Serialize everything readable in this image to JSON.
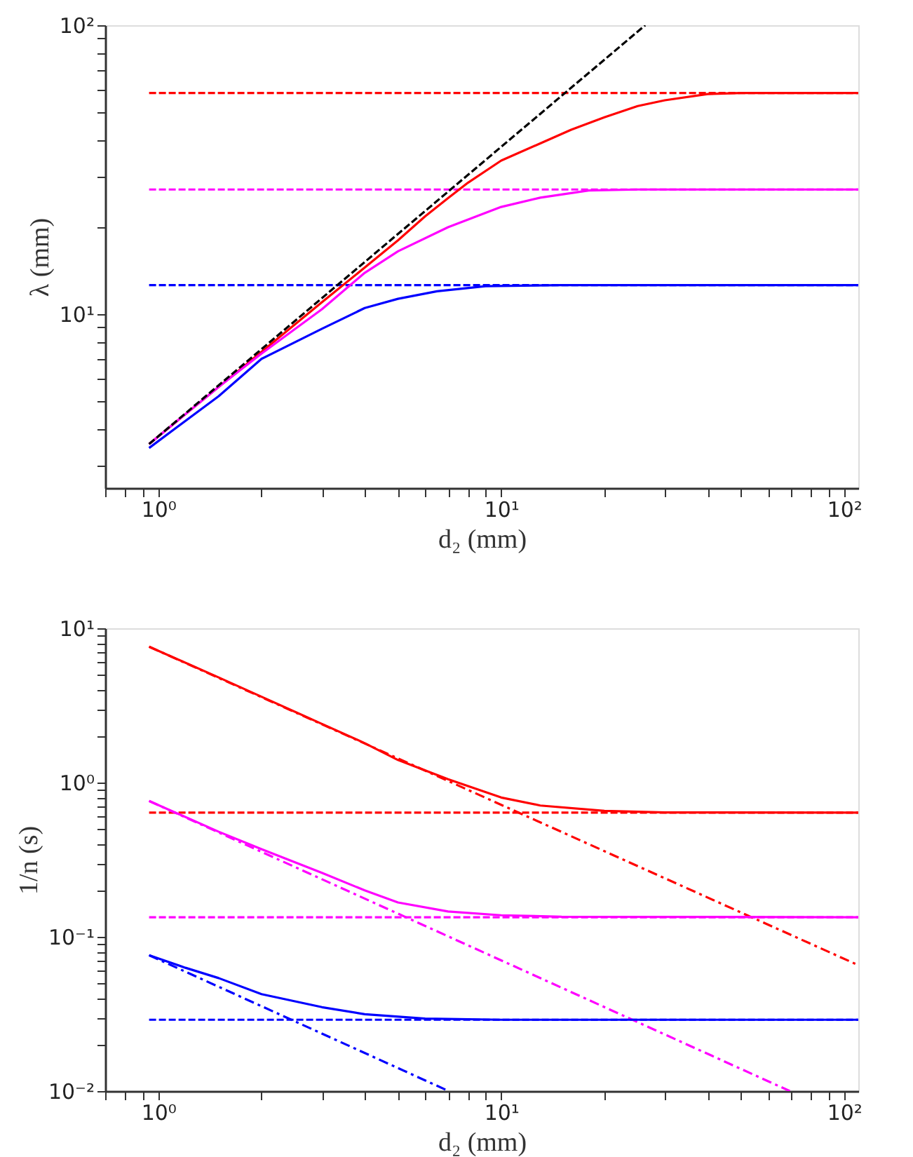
{
  "chart_data": [
    {
      "type": "line",
      "xlabel": "d₂ (mm)",
      "ylabel": "λ (mm)",
      "log": "xy",
      "grid": false,
      "marker": "none",
      "xlim": [
        0.7,
        110
      ],
      "ylim": [
        2.5,
        100
      ],
      "xticks": [
        {
          "value": 0.7,
          "label": null
        },
        {
          "value": 0.8,
          "label": null
        },
        {
          "value": 0.9,
          "label": null
        },
        {
          "value": 1,
          "label": "10⁰"
        },
        {
          "value": 2,
          "label": null
        },
        {
          "value": 3,
          "label": null
        },
        {
          "value": 4,
          "label": null
        },
        {
          "value": 5,
          "label": null
        },
        {
          "value": 6,
          "label": null
        },
        {
          "value": 7,
          "label": null
        },
        {
          "value": 8,
          "label": null
        },
        {
          "value": 9,
          "label": null
        },
        {
          "value": 10,
          "label": "10¹"
        },
        {
          "value": 20,
          "label": null
        },
        {
          "value": 30,
          "label": null
        },
        {
          "value": 40,
          "label": null
        },
        {
          "value": 50,
          "label": null
        },
        {
          "value": 60,
          "label": null
        },
        {
          "value": 70,
          "label": null
        },
        {
          "value": 80,
          "label": null
        },
        {
          "value": 90,
          "label": null
        },
        {
          "value": 100,
          "label": "10²"
        }
      ],
      "yticks": [
        {
          "value": 3,
          "label": null
        },
        {
          "value": 4,
          "label": null
        },
        {
          "value": 5,
          "label": null
        },
        {
          "value": 6,
          "label": null
        },
        {
          "value": 7,
          "label": null
        },
        {
          "value": 8,
          "label": null
        },
        {
          "value": 9,
          "label": null
        },
        {
          "value": 10,
          "label": "10¹"
        },
        {
          "value": 20,
          "label": null
        },
        {
          "value": 30,
          "label": null
        },
        {
          "value": 40,
          "label": null
        },
        {
          "value": 50,
          "label": null
        },
        {
          "value": 60,
          "label": null
        },
        {
          "value": 70,
          "label": null
        },
        {
          "value": 80,
          "label": null
        },
        {
          "value": 90,
          "label": null
        },
        {
          "value": 100,
          "label": "10²"
        }
      ],
      "series": [
        {
          "color": "#ff0000",
          "line_style": "dashed",
          "x": [
            0.94,
            110
          ],
          "values": [
            58.3,
            58.3
          ]
        },
        {
          "color": "#ff00ff",
          "line_style": "dashed",
          "x": [
            0.94,
            110
          ],
          "values": [
            27,
            27
          ]
        },
        {
          "color": "#0000ff",
          "line_style": "dashed",
          "x": [
            0.94,
            110
          ],
          "values": [
            12.6,
            12.6
          ]
        },
        {
          "color": "#ff0000",
          "line_style": "solid",
          "x": [
            0.94,
            1.5,
            2,
            3,
            4,
            5,
            6,
            7,
            8,
            10,
            13,
            16,
            20,
            25,
            30,
            40,
            50,
            110
          ],
          "values": [
            3.55,
            5.6,
            7.4,
            11,
            14.5,
            18,
            21.8,
            25.2,
            28.5,
            34,
            39,
            43.5,
            48,
            52.5,
            55,
            57.8,
            58.3,
            58.3
          ]
        },
        {
          "color": "#ff00ff",
          "line_style": "solid",
          "x": [
            0.94,
            1.5,
            2,
            3,
            4,
            5,
            7,
            10,
            13,
            18,
            25,
            110
          ],
          "values": [
            3.55,
            5.6,
            7.3,
            10.4,
            13.9,
            16.5,
            20,
            23.5,
            25.3,
            26.8,
            27,
            27
          ]
        },
        {
          "color": "#0000ff",
          "line_style": "solid",
          "x": [
            0.94,
            1.5,
            2,
            3,
            4,
            5,
            6.5,
            9,
            15,
            110
          ],
          "values": [
            3.44,
            5.2,
            7.0,
            8.9,
            10.5,
            11.3,
            12.0,
            12.5,
            12.6,
            12.6
          ]
        },
        {
          "color": "#000000",
          "line_style": "dashed",
          "x": [
            0.94,
            26.3
          ],
          "values": [
            3.55,
            100
          ]
        }
      ]
    },
    {
      "type": "line",
      "xlabel": "d₂ (mm)",
      "ylabel": "1/n (s)",
      "log": "xy",
      "grid": false,
      "marker": "none",
      "xlim": [
        0.7,
        110
      ],
      "ylim": [
        0.01,
        10
      ],
      "xticks": [
        {
          "value": 0.7,
          "label": null
        },
        {
          "value": 0.8,
          "label": null
        },
        {
          "value": 0.9,
          "label": null
        },
        {
          "value": 1,
          "label": "10⁰"
        },
        {
          "value": 2,
          "label": null
        },
        {
          "value": 3,
          "label": null
        },
        {
          "value": 4,
          "label": null
        },
        {
          "value": 5,
          "label": null
        },
        {
          "value": 6,
          "label": null
        },
        {
          "value": 7,
          "label": null
        },
        {
          "value": 8,
          "label": null
        },
        {
          "value": 9,
          "label": null
        },
        {
          "value": 10,
          "label": "10¹"
        },
        {
          "value": 20,
          "label": null
        },
        {
          "value": 30,
          "label": null
        },
        {
          "value": 40,
          "label": null
        },
        {
          "value": 50,
          "label": null
        },
        {
          "value": 60,
          "label": null
        },
        {
          "value": 70,
          "label": null
        },
        {
          "value": 80,
          "label": null
        },
        {
          "value": 90,
          "label": null
        },
        {
          "value": 100,
          "label": "10²"
        }
      ],
      "yticks": [
        {
          "value": 0.01,
          "label": "10⁻²"
        },
        {
          "value": 0.02,
          "label": null
        },
        {
          "value": 0.03,
          "label": null
        },
        {
          "value": 0.04,
          "label": null
        },
        {
          "value": 0.05,
          "label": null
        },
        {
          "value": 0.06,
          "label": null
        },
        {
          "value": 0.07,
          "label": null
        },
        {
          "value": 0.08,
          "label": null
        },
        {
          "value": 0.09,
          "label": null
        },
        {
          "value": 0.1,
          "label": "10⁻¹"
        },
        {
          "value": 0.2,
          "label": null
        },
        {
          "value": 0.3,
          "label": null
        },
        {
          "value": 0.4,
          "label": null
        },
        {
          "value": 0.5,
          "label": null
        },
        {
          "value": 0.6,
          "label": null
        },
        {
          "value": 0.7,
          "label": null
        },
        {
          "value": 0.8,
          "label": null
        },
        {
          "value": 0.9,
          "label": null
        },
        {
          "value": 1,
          "label": "10⁰"
        },
        {
          "value": 2,
          "label": null
        },
        {
          "value": 3,
          "label": null
        },
        {
          "value": 4,
          "label": null
        },
        {
          "value": 5,
          "label": null
        },
        {
          "value": 6,
          "label": null
        },
        {
          "value": 7,
          "label": null
        },
        {
          "value": 8,
          "label": null
        },
        {
          "value": 9,
          "label": null
        },
        {
          "value": 10,
          "label": "10¹"
        }
      ],
      "series": [
        {
          "color": "#ff0000",
          "line_style": "dashed",
          "x": [
            0.94,
            110
          ],
          "values": [
            0.638,
            0.638
          ]
        },
        {
          "color": "#ff00ff",
          "line_style": "dashed",
          "x": [
            0.94,
            110
          ],
          "values": [
            0.134,
            0.134
          ]
        },
        {
          "color": "#0000ff",
          "line_style": "dashed",
          "x": [
            0.94,
            110
          ],
          "values": [
            0.029,
            0.029
          ]
        },
        {
          "color": "#ff0000",
          "line_style": "dashdot",
          "x": [
            0.94,
            110
          ],
          "values": [
            7.6,
            0.0655
          ]
        },
        {
          "color": "#ff00ff",
          "line_style": "dashdot",
          "x": [
            0.94,
            69.5
          ],
          "values": [
            0.76,
            0.01
          ]
        },
        {
          "color": "#0000ff",
          "line_style": "dashdot",
          "x": [
            0.94,
            7.03
          ],
          "values": [
            0.076,
            0.01
          ]
        },
        {
          "color": "#ff0000",
          "line_style": "solid",
          "x": [
            0.94,
            1.5,
            2,
            3,
            4,
            5,
            7,
            10,
            13,
            20,
            30,
            110
          ],
          "values": [
            7.6,
            4.8,
            3.6,
            2.4,
            1.8,
            1.4,
            1.05,
            0.8,
            0.71,
            0.655,
            0.64,
            0.638
          ]
        },
        {
          "color": "#ff00ff",
          "line_style": "solid",
          "x": [
            0.94,
            1.5,
            2,
            3,
            4,
            5,
            7,
            10,
            15,
            110
          ],
          "values": [
            0.76,
            0.48,
            0.37,
            0.26,
            0.2,
            0.167,
            0.146,
            0.138,
            0.135,
            0.134
          ]
        },
        {
          "color": "#0000ff",
          "line_style": "solid",
          "x": [
            0.94,
            1.2,
            1.5,
            2,
            3,
            4,
            6,
            10,
            110
          ],
          "values": [
            0.076,
            0.063,
            0.054,
            0.0425,
            0.035,
            0.0315,
            0.0295,
            0.029,
            0.029
          ]
        }
      ]
    }
  ]
}
